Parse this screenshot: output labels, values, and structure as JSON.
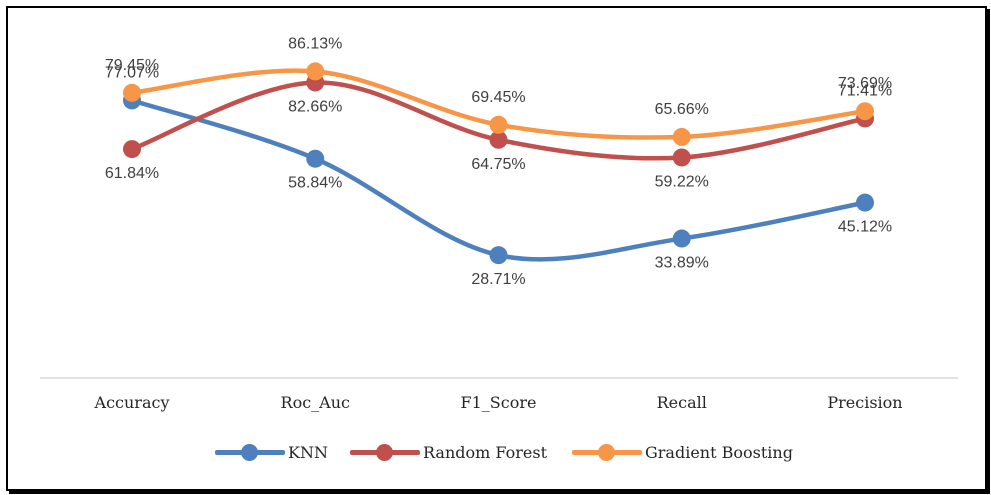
{
  "chart_data": {
    "type": "line",
    "categories": [
      "Accuracy",
      "Roc_Auc",
      "F1_Score",
      "Recall",
      "Precision"
    ],
    "ylim": [
      0,
      100
    ],
    "grid": false,
    "legend_position": "bottom",
    "series": [
      {
        "name": "KNN",
        "color": "#4e80bd",
        "values": [
          77.07,
          58.84,
          28.71,
          33.89,
          45.12
        ],
        "labels": [
          "77.07%",
          "58.84%",
          "28.71%",
          "33.89%",
          "45.12%"
        ]
      },
      {
        "name": "Random Forest",
        "color": "#c0504d",
        "values": [
          61.84,
          82.66,
          64.75,
          59.22,
          71.41
        ],
        "labels": [
          "61.84%",
          "82.66%",
          "64.75%",
          "59.22%",
          "71.41%"
        ]
      },
      {
        "name": "Gradient Boosting",
        "color": "#f79646",
        "values": [
          79.45,
          86.13,
          69.45,
          65.66,
          73.69
        ],
        "labels": [
          "79.45%",
          "86.13%",
          "69.45%",
          "65.66%",
          "73.69%"
        ]
      }
    ]
  }
}
